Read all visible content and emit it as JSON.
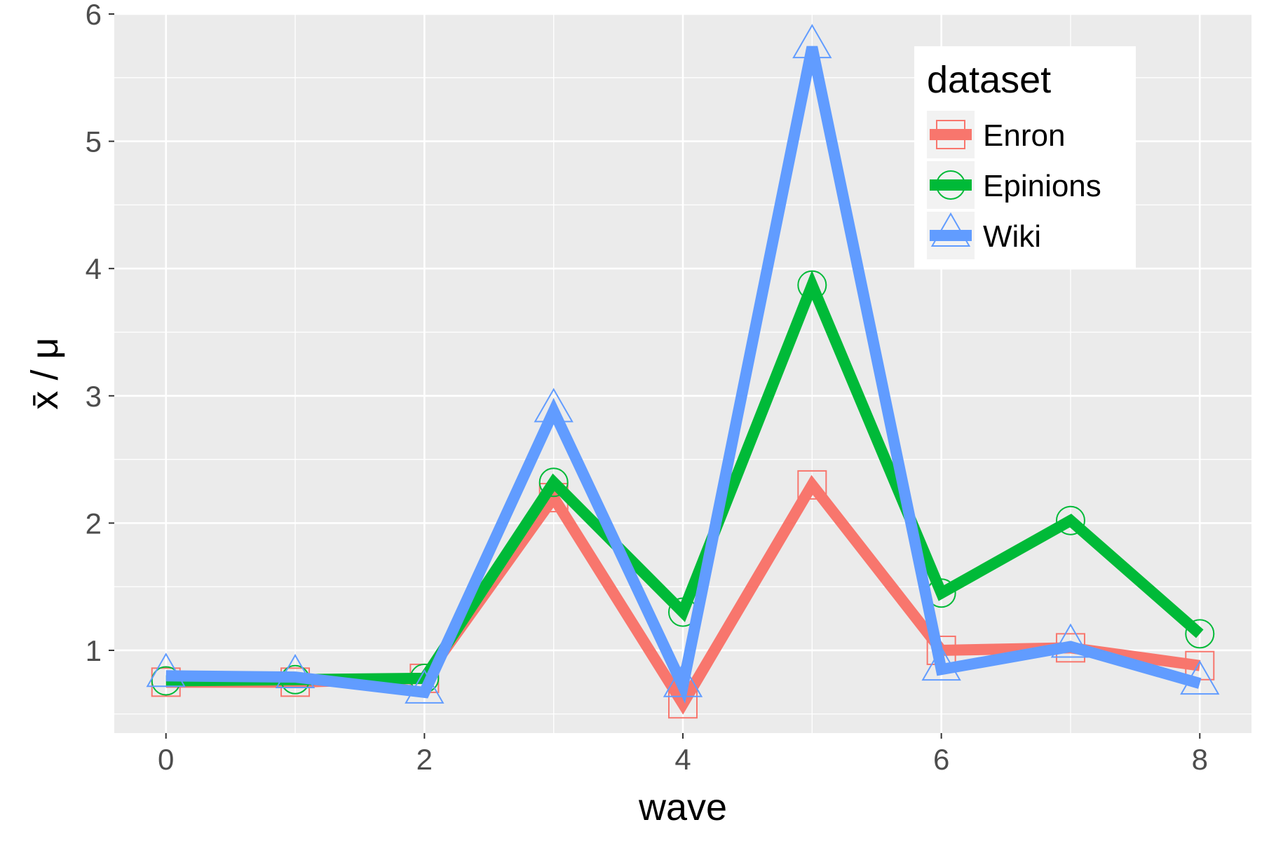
{
  "chart_data": {
    "type": "line",
    "xlabel": "wave",
    "ylabel": "x̄ / μ",
    "x": [
      0,
      1,
      2,
      3,
      4,
      5,
      6,
      7,
      8
    ],
    "xticks": [
      "0",
      "2",
      "4",
      "6",
      "8"
    ],
    "yticks": [
      "1",
      "2",
      "3",
      "4",
      "5",
      "6"
    ],
    "xlim": [
      -0.4,
      8.4
    ],
    "ylim": [
      0.35,
      6.0
    ],
    "grid": true,
    "legend": {
      "title": "dataset",
      "position": "top-right"
    },
    "series": [
      {
        "name": "Enron",
        "color": "#F8766D",
        "marker": "square",
        "values": [
          0.75,
          0.75,
          0.78,
          2.2,
          0.58,
          2.3,
          1.0,
          1.02,
          0.88
        ]
      },
      {
        "name": "Epinions",
        "color": "#00BA38",
        "marker": "circle",
        "values": [
          0.76,
          0.77,
          0.78,
          2.32,
          1.3,
          3.87,
          1.45,
          2.02,
          1.13
        ]
      },
      {
        "name": "Wiki",
        "color": "#619CFF",
        "marker": "triangle",
        "values": [
          0.8,
          0.79,
          0.67,
          2.88,
          0.72,
          5.74,
          0.85,
          1.03,
          0.74
        ]
      }
    ]
  }
}
